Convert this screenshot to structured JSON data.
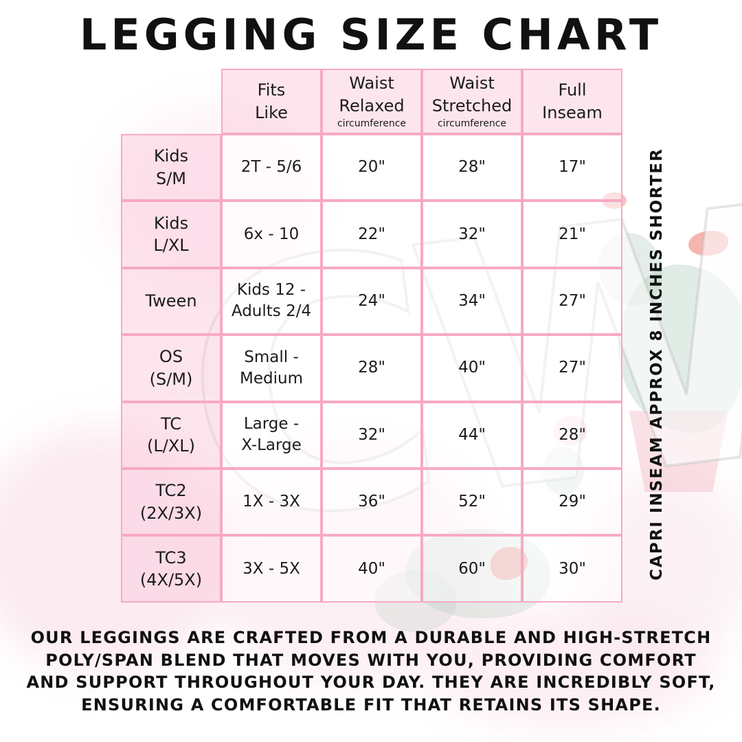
{
  "title": "LEGGING SIZE CHART",
  "watermark": "CW",
  "side_note": "CAPRI INSEAM APPROX 8 INCHES SHORTER",
  "description_lines": [
    "OUR LEGGINGS ARE CRAFTED FROM A DURABLE AND HIGH-STRETCH",
    "POLY/SPAN BLEND THAT MOVES WITH YOU, PROVIDING COMFORT",
    "AND SUPPORT THROUGHOUT YOUR DAY. THEY ARE INCREDIBLY SOFT,",
    "ENSURING A COMFORTABLE FIT THAT RETAINS ITS SHAPE."
  ],
  "colors": {
    "table_border_pink": "#f7a9c4",
    "cell_fill_pink": "#fce3ec",
    "text": "#111111",
    "cactus_green": "#a4c5b3",
    "flower_coral": "#ee7870"
  },
  "chart_data": {
    "type": "table",
    "title": "LEGGING SIZE CHART",
    "column_headers": [
      {
        "label": "Fits\nLike",
        "sub": ""
      },
      {
        "label": "Waist\nRelaxed",
        "sub": "circumference"
      },
      {
        "label": "Waist\nStretched",
        "sub": "circumference"
      },
      {
        "label": "Full\nInseam",
        "sub": ""
      }
    ],
    "rows": [
      {
        "size": "Kids\nS/M",
        "cells": [
          "2T - 5/6",
          "20\"",
          "28\"",
          "17\""
        ]
      },
      {
        "size": "Kids\nL/XL",
        "cells": [
          "6x - 10",
          "22\"",
          "32\"",
          "21\""
        ]
      },
      {
        "size": "Tween",
        "cells": [
          "Kids 12 -\nAdults 2/4",
          "24\"",
          "34\"",
          "27\""
        ]
      },
      {
        "size": "OS\n(S/M)",
        "cells": [
          "Small -\nMedium",
          "28\"",
          "40\"",
          "27\""
        ]
      },
      {
        "size": "TC\n(L/XL)",
        "cells": [
          "Large -\nX-Large",
          "32\"",
          "44\"",
          "28\""
        ]
      },
      {
        "size": "TC2\n(2X/3X)",
        "cells": [
          "1X - 3X",
          "36\"",
          "52\"",
          "29\""
        ]
      },
      {
        "size": "TC3\n(4X/5X)",
        "cells": [
          "3X - 5X",
          "40\"",
          "60\"",
          "30\""
        ]
      }
    ]
  }
}
